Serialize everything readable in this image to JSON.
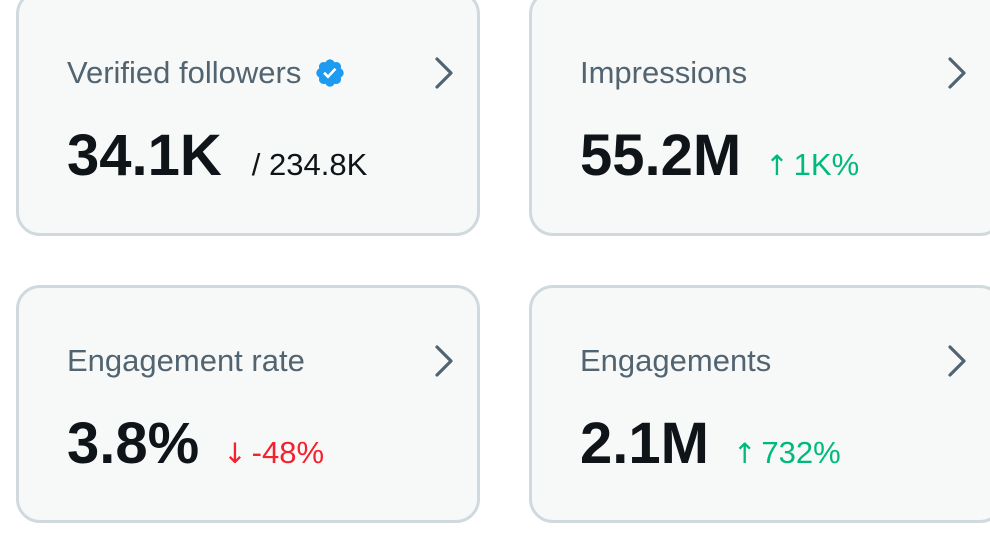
{
  "colors": {
    "card_background": "#f7f9f9",
    "card_border": "#cfd9de",
    "label_text": "#536471",
    "value_text": "#0f1419",
    "chevron": "#536471",
    "verified_badge": "#1d9bf0",
    "positive_change": "#00ba7c",
    "negative_change": "#f4212e"
  },
  "cards": [
    {
      "label": "Verified followers",
      "value": "34.1K",
      "total": "/ 234.8K",
      "icons": [
        "verified-badge-icon",
        "chevron-right-icon"
      ]
    },
    {
      "label": "Impressions",
      "value": "55.2M",
      "change": {
        "direction": "up",
        "arrow": "↑",
        "text": "1K%",
        "color": "#00ba7c"
      },
      "icons": [
        "chevron-right-icon"
      ]
    },
    {
      "label": "Engagement rate",
      "value": "3.8%",
      "change": {
        "direction": "down",
        "arrow": "↓",
        "text": "-48%",
        "color": "#f4212e"
      },
      "icons": [
        "chevron-right-icon"
      ]
    },
    {
      "label": "Engagements",
      "value": "2.1M",
      "change": {
        "direction": "up",
        "arrow": "↑",
        "text": "732%",
        "color": "#00ba7c"
      },
      "icons": [
        "chevron-right-icon"
      ]
    }
  ]
}
